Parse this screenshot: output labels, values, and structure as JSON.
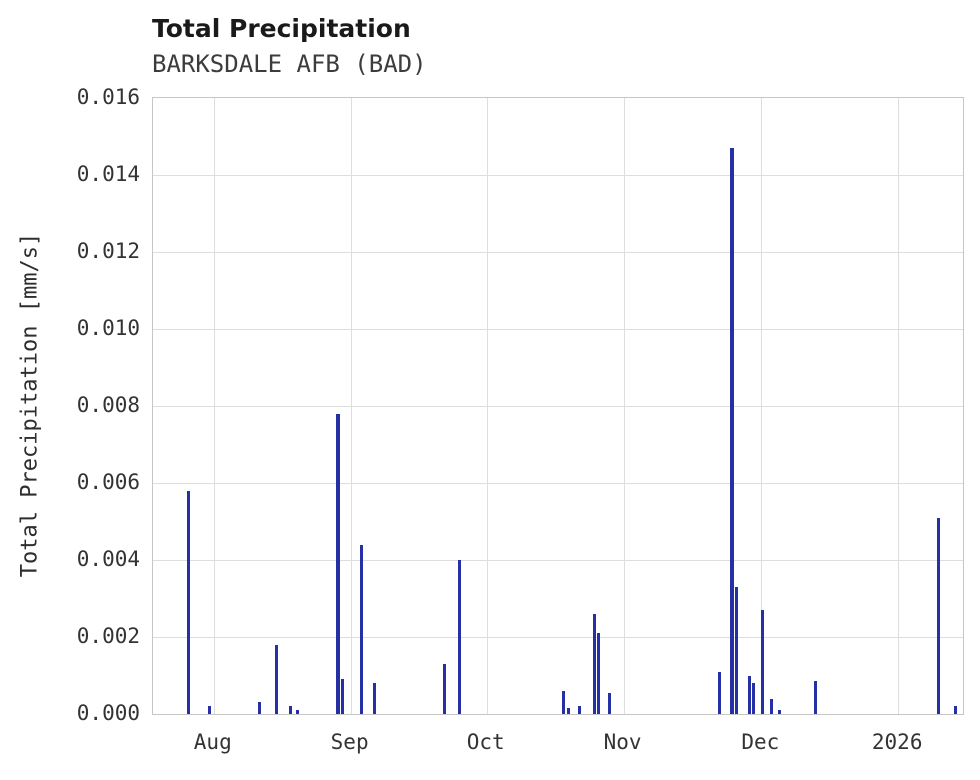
{
  "colors": {
    "bar": "#2530a5",
    "grid": "#dedede",
    "spine": "#c6c6c6",
    "title_text": "#1a1a1a",
    "tick_text": "#333333"
  },
  "chart_data": {
    "type": "bar",
    "title": "Total Precipitation",
    "subtitle": "BARKSDALE AFB (BAD)",
    "xlabel": "",
    "ylabel": "Total Precipitation [mm/s]",
    "ylim": [
      0,
      0.016
    ],
    "grid": true,
    "legend": false,
    "yticks": [
      {
        "label": "0.000",
        "value": 0.0
      },
      {
        "label": "0.002",
        "value": 0.002
      },
      {
        "label": "0.004",
        "value": 0.004
      },
      {
        "label": "0.006",
        "value": 0.006
      },
      {
        "label": "0.008",
        "value": 0.008
      },
      {
        "label": "0.010",
        "value": 0.01
      },
      {
        "label": "0.012",
        "value": 0.012
      },
      {
        "label": "0.014",
        "value": 0.014
      },
      {
        "label": "0.016",
        "value": 0.016
      }
    ],
    "xticks": [
      {
        "label": "Aug",
        "x": 0.075
      },
      {
        "label": "Sep",
        "x": 0.244
      },
      {
        "label": "Oct",
        "x": 0.412
      },
      {
        "label": "Nov",
        "x": 0.581
      },
      {
        "label": "Dec",
        "x": 0.751
      },
      {
        "label": "2026",
        "x": 0.92
      }
    ],
    "series_name": "Total Precipitation",
    "points": [
      {
        "date": "2025-07-26",
        "x": 0.044,
        "value": 0.0058
      },
      {
        "date": "2025-08-01",
        "x": 0.07,
        "value": 0.0002
      },
      {
        "date": "2025-08-11",
        "x": 0.131,
        "value": 0.0003
      },
      {
        "date": "2025-08-15",
        "x": 0.152,
        "value": 0.0018
      },
      {
        "date": "2025-08-18",
        "x": 0.17,
        "value": 0.0002
      },
      {
        "date": "2025-08-19",
        "x": 0.179,
        "value": 0.0001
      },
      {
        "date": "2025-08-29",
        "x": 0.229,
        "value": 0.0078,
        "w": 4
      },
      {
        "date": "2025-08-30",
        "x": 0.234,
        "value": 0.0009
      },
      {
        "date": "2025-09-03",
        "x": 0.257,
        "value": 0.0044
      },
      {
        "date": "2025-09-06",
        "x": 0.274,
        "value": 0.0008
      },
      {
        "date": "2025-09-22",
        "x": 0.36,
        "value": 0.0013
      },
      {
        "date": "2025-09-25",
        "x": 0.378,
        "value": 0.004
      },
      {
        "date": "2025-10-18",
        "x": 0.507,
        "value": 0.0006
      },
      {
        "date": "2025-10-19",
        "x": 0.513,
        "value": 0.00015
      },
      {
        "date": "2025-10-21",
        "x": 0.526,
        "value": 0.0002
      },
      {
        "date": "2025-10-25",
        "x": 0.545,
        "value": 0.0026
      },
      {
        "date": "2025-10-26",
        "x": 0.55,
        "value": 0.0021
      },
      {
        "date": "2025-10-28",
        "x": 0.563,
        "value": 0.00055
      },
      {
        "date": "2025-11-22",
        "x": 0.699,
        "value": 0.0011
      },
      {
        "date": "2025-11-25",
        "x": 0.715,
        "value": 0.0147,
        "w": 4
      },
      {
        "date": "2025-11-26",
        "x": 0.72,
        "value": 0.0033
      },
      {
        "date": "2025-11-29",
        "x": 0.736,
        "value": 0.001
      },
      {
        "date": "2025-11-30",
        "x": 0.741,
        "value": 0.0008
      },
      {
        "date": "2025-12-01",
        "x": 0.753,
        "value": 0.0027
      },
      {
        "date": "2025-12-03",
        "x": 0.763,
        "value": 0.0004
      },
      {
        "date": "2025-12-05",
        "x": 0.774,
        "value": 0.0001
      },
      {
        "date": "2025-12-13",
        "x": 0.818,
        "value": 0.00085
      },
      {
        "date": "2026-01-10",
        "x": 0.97,
        "value": 0.0051
      },
      {
        "date": "2026-01-13",
        "x": 0.991,
        "value": 0.0002
      }
    ]
  }
}
